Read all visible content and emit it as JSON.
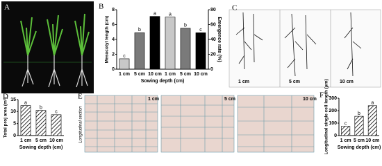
{
  "chart_data": [
    {
      "type": "bar",
      "label": "B",
      "xlabel": "Sowing depth (cm)",
      "ylabel": "Mesocotyl length (cm)",
      "y2label": "Emergence rate (%)",
      "categories": [
        "1 cm",
        "5 cm",
        "10 cm",
        "1 cm",
        "5 cm",
        "10 cm"
      ],
      "colors": [
        "#c8c8c8",
        "#7a7a7a",
        "#000000",
        "#c8c8c8",
        "#7a7a7a",
        "#000000"
      ],
      "series": [
        {
          "values": [
            1.4,
            4.9,
            7.1,
            null,
            null,
            null
          ]
        },
        {
          "axis": "y2",
          "values": [
            null,
            null,
            null,
            70,
            55,
            49
          ]
        }
      ],
      "letters": [
        "c",
        "b",
        "a",
        "a",
        "b",
        "c"
      ],
      "ylim": [
        0,
        8
      ],
      "yticks": [
        0,
        2,
        4,
        6,
        8
      ],
      "y2lim": [
        0,
        80
      ],
      "y2ticks": [
        0,
        20,
        40,
        60,
        80
      ]
    },
    {
      "type": "bar",
      "label": "D",
      "xlabel": "Sowing depth (cm)",
      "ylabel": "Total proj area (m²)",
      "pattern": "hatch",
      "categories": [
        "1 cm",
        "5 cm",
        "10 cm"
      ],
      "series": [
        {
          "values": [
            12.5,
            10.5,
            8.7
          ]
        }
      ],
      "letters": [
        "a",
        "b",
        "c"
      ],
      "ylim": [
        0,
        15
      ],
      "yticks": [
        0,
        5,
        10,
        15
      ]
    },
    {
      "type": "bar",
      "label": "F",
      "xlabel": "Sowing depth (cm)",
      "ylabel": "Longitudinal single cell length (μm)",
      "pattern": "hatch",
      "categories": [
        "1 cm",
        "5 cm",
        "10 cm"
      ],
      "series": [
        {
          "values": [
            75,
            155,
            240
          ]
        }
      ],
      "letters": [
        "c",
        "b",
        "a"
      ],
      "ylim": [
        0,
        300
      ],
      "yticks": [
        0,
        100,
        200,
        300
      ]
    }
  ],
  "panels": {
    "A": {
      "label": "A"
    },
    "C": {
      "label": "C",
      "captions": [
        "1 cm",
        "5 cm",
        "10 cm"
      ]
    },
    "E": {
      "label": "E",
      "side": "Longitudinal section",
      "captions": [
        "1 cm",
        "5 cm",
        "10 cm"
      ]
    }
  }
}
